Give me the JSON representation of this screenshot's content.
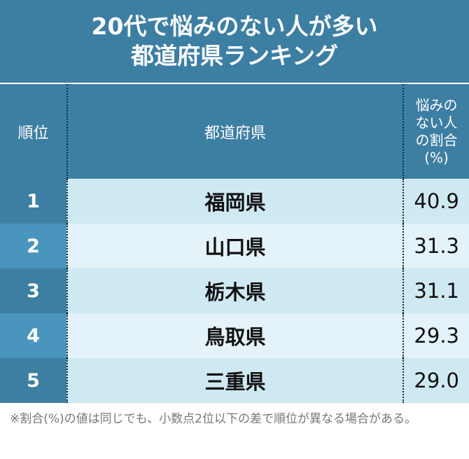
{
  "title": {
    "line1": "20代で悩みのない人が多い",
    "line2": "都道府県ランキング"
  },
  "table": {
    "headers": {
      "rank": "順位",
      "prefecture": "都道府県",
      "ratio": "悩みの\nない人\nの割合\n(%)"
    },
    "rows": [
      {
        "rank": "1",
        "prefecture": "福岡県",
        "ratio": "40.9"
      },
      {
        "rank": "2",
        "prefecture": "山口県",
        "ratio": "31.3"
      },
      {
        "rank": "3",
        "prefecture": "栃木県",
        "ratio": "31.1"
      },
      {
        "rank": "4",
        "prefecture": "鳥取県",
        "ratio": "29.3"
      },
      {
        "rank": "5",
        "prefecture": "三重県",
        "ratio": "29.0"
      }
    ]
  },
  "note": "※割合(%)の値は同じでも、小数点2位以下の差で順位が異なる場合がある。",
  "colors": {
    "header_bg": "#3d7ea3",
    "rank_odd": "#3d7ea3",
    "rank_even": "#4a95bd",
    "row_odd": "#cfe9f3",
    "row_even": "#e3f3f9"
  }
}
